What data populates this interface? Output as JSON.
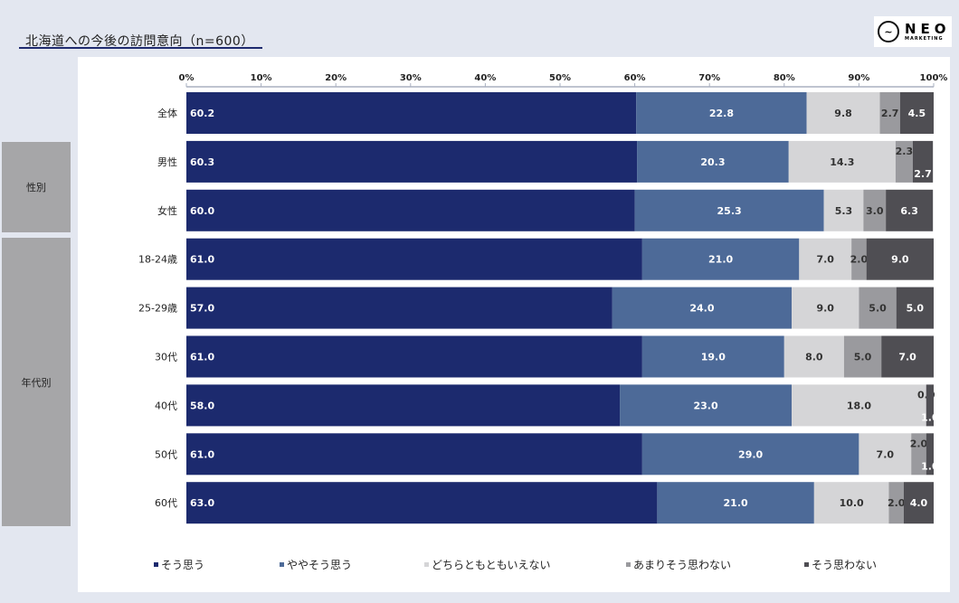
{
  "header": {
    "title": "北海道への今後の訪問意向（n=600）",
    "logo_text": "NEO",
    "logo_sub": "MARKETING"
  },
  "groups": [
    {
      "label": "性別"
    },
    {
      "label": "年代別"
    }
  ],
  "chart_data": {
    "type": "bar",
    "orientation": "horizontal",
    "stacked": true,
    "title": "北海道への今後の訪問意向（n=600）",
    "xlim": [
      0,
      100
    ],
    "xticks": [
      "0%",
      "10%",
      "20%",
      "30%",
      "40%",
      "50%",
      "60%",
      "70%",
      "80%",
      "90%",
      "100%"
    ],
    "categories": [
      "全体",
      "男性",
      "女性",
      "18-24歳",
      "25-29歳",
      "30代",
      "40代",
      "50代",
      "60代"
    ],
    "series": [
      {
        "name": "そう思う",
        "color": "#1c2a6e",
        "values": [
          60.2,
          60.3,
          60.0,
          61.0,
          57.0,
          61.0,
          58.0,
          61.0,
          63.0
        ]
      },
      {
        "name": "ややそう思う",
        "color": "#4d6a98",
        "values": [
          22.8,
          20.3,
          25.3,
          21.0,
          24.0,
          19.0,
          23.0,
          29.0,
          21.0
        ]
      },
      {
        "name": "どちらともともいえない",
        "color": "#d5d5d7",
        "values": [
          9.8,
          14.3,
          5.3,
          7.0,
          9.0,
          8.0,
          18.0,
          7.0,
          10.0
        ]
      },
      {
        "name": "あまりそう思わない",
        "color": "#9a9a9e",
        "values": [
          2.7,
          2.3,
          3.0,
          2.0,
          5.0,
          5.0,
          0.0,
          2.0,
          2.0
        ]
      },
      {
        "name": "そう思わない",
        "color": "#4f4e53",
        "values": [
          4.5,
          2.7,
          6.3,
          9.0,
          5.0,
          7.0,
          1.0,
          1.0,
          4.0
        ]
      }
    ],
    "legend_position": "bottom"
  }
}
